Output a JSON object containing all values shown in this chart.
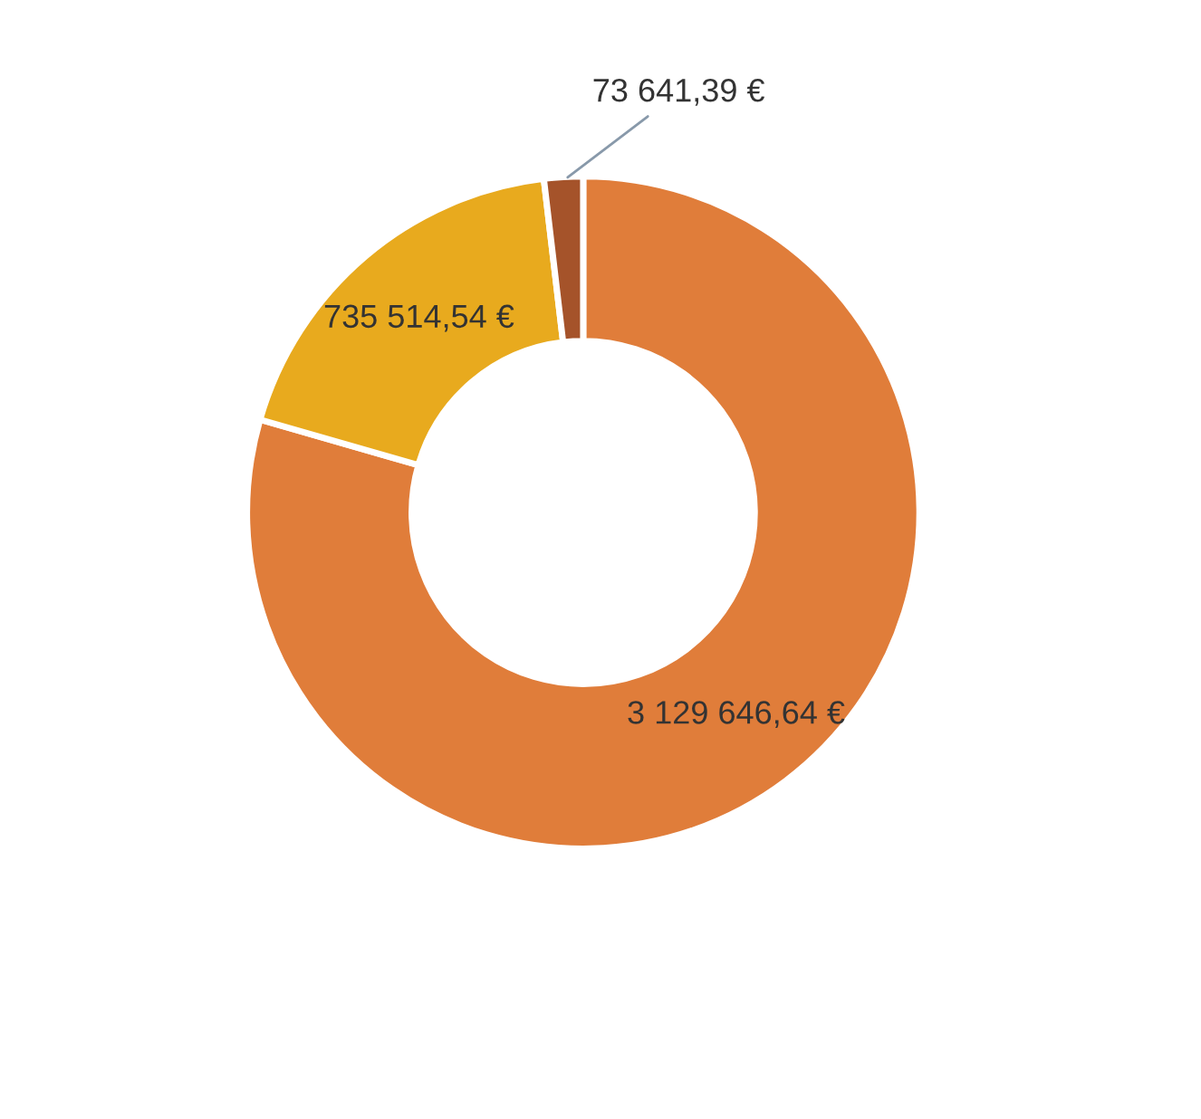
{
  "chart_data": {
    "type": "donut",
    "categories": [
      null,
      null,
      null
    ],
    "values": [
      3129646.64,
      735514.54,
      73641.39
    ],
    "colors": [
      "#e07d3a",
      "#e8aa1e",
      "#a5532a"
    ],
    "value_labels": [
      "3 129 646,64 €",
      "735 514,54 €",
      "73 641,39 €"
    ],
    "legend": false
  }
}
